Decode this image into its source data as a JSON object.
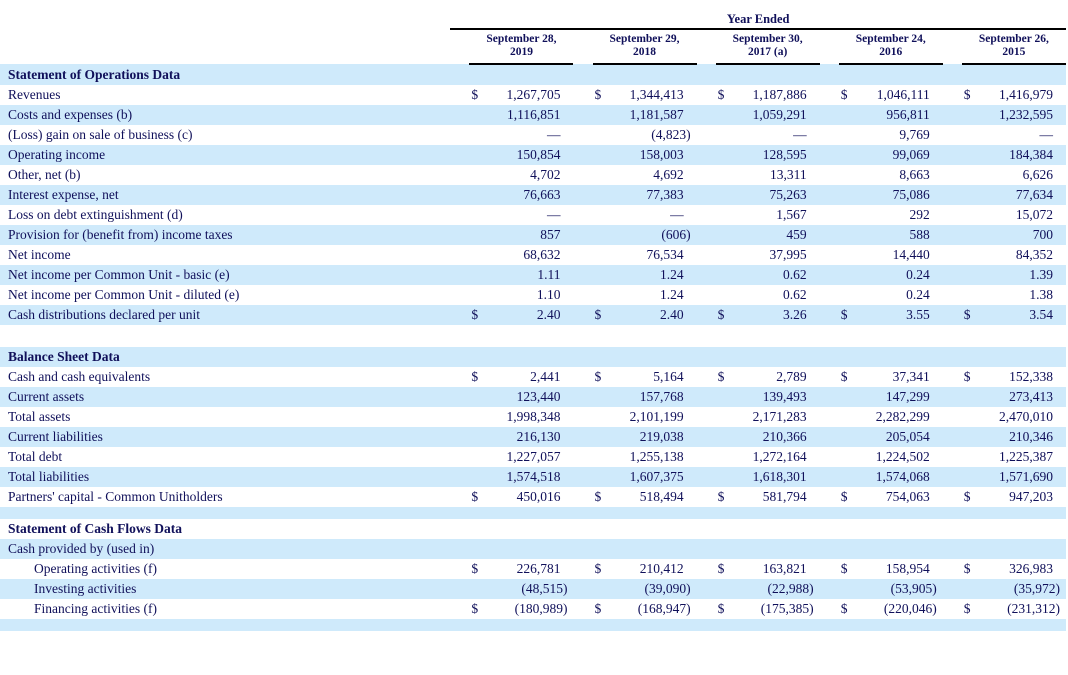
{
  "table": {
    "header": {
      "year_ended_label": "Year Ended",
      "columns": [
        {
          "line1": "September 28,",
          "line2": "2019"
        },
        {
          "line1": "September 29,",
          "line2": "2018"
        },
        {
          "line1": "September 30,",
          "line2": "2017 (a)"
        },
        {
          "line1": "September 24,",
          "line2": "2016"
        },
        {
          "line1": "September 26,",
          "line2": "2015"
        }
      ]
    },
    "currency_symbol": "$",
    "colors": {
      "row_shade": "#cfeafb",
      "text": "#10105a",
      "rule": "#000000"
    },
    "sections": [
      {
        "title": "Statement of Operations Data",
        "rows": [
          {
            "label": "Revenues",
            "dollar": true,
            "values": [
              "1,267,705",
              "1,344,413",
              "1,187,886",
              "1,046,111",
              "1,416,979"
            ]
          },
          {
            "label": "Costs and expenses (b)",
            "dollar": false,
            "values": [
              "1,116,851",
              "1,181,587",
              "1,059,291",
              "956,811",
              "1,232,595"
            ]
          },
          {
            "label": "(Loss) gain on sale of business (c)",
            "dollar": false,
            "values": [
              "—",
              "(4,823)",
              "—",
              "9,769",
              "—"
            ]
          },
          {
            "label": "Operating income",
            "dollar": false,
            "values": [
              "150,854",
              "158,003",
              "128,595",
              "99,069",
              "184,384"
            ]
          },
          {
            "label": "Other, net (b)",
            "dollar": false,
            "values": [
              "4,702",
              "4,692",
              "13,311",
              "8,663",
              "6,626"
            ]
          },
          {
            "label": "Interest expense, net",
            "dollar": false,
            "values": [
              "76,663",
              "77,383",
              "75,263",
              "75,086",
              "77,634"
            ]
          },
          {
            "label": "Loss on debt extinguishment (d)",
            "dollar": false,
            "values": [
              "—",
              "—",
              "1,567",
              "292",
              "15,072"
            ]
          },
          {
            "label": "Provision for (benefit from) income taxes",
            "dollar": false,
            "values": [
              "857",
              "(606)",
              "459",
              "588",
              "700"
            ]
          },
          {
            "label": "Net income",
            "dollar": false,
            "values": [
              "68,632",
              "76,534",
              "37,995",
              "14,440",
              "84,352"
            ]
          },
          {
            "label": "Net income per Common Unit - basic (e)",
            "dollar": false,
            "values": [
              "1.11",
              "1.24",
              "0.62",
              "0.24",
              "1.39"
            ]
          },
          {
            "label": "Net income per Common Unit - diluted (e)",
            "dollar": false,
            "values": [
              "1.10",
              "1.24",
              "0.62",
              "0.24",
              "1.38"
            ]
          },
          {
            "label": "Cash distributions declared per unit",
            "dollar": true,
            "values": [
              "2.40",
              "2.40",
              "3.26",
              "3.55",
              "3.54"
            ]
          }
        ]
      },
      {
        "title": "Balance Sheet Data",
        "rows": [
          {
            "label": "Cash and cash equivalents",
            "dollar": true,
            "values": [
              "2,441",
              "5,164",
              "2,789",
              "37,341",
              "152,338"
            ]
          },
          {
            "label": "Current assets",
            "dollar": false,
            "values": [
              "123,440",
              "157,768",
              "139,493",
              "147,299",
              "273,413"
            ]
          },
          {
            "label": "Total assets",
            "dollar": false,
            "values": [
              "1,998,348",
              "2,101,199",
              "2,171,283",
              "2,282,299",
              "2,470,010"
            ]
          },
          {
            "label": "Current liabilities",
            "dollar": false,
            "values": [
              "216,130",
              "219,038",
              "210,366",
              "205,054",
              "210,346"
            ]
          },
          {
            "label": "Total debt",
            "dollar": false,
            "values": [
              "1,227,057",
              "1,255,138",
              "1,272,164",
              "1,224,502",
              "1,225,387"
            ]
          },
          {
            "label": "Total liabilities",
            "dollar": false,
            "values": [
              "1,574,518",
              "1,607,375",
              "1,618,301",
              "1,574,068",
              "1,571,690"
            ]
          },
          {
            "label": "Partners' capital - Common Unitholders",
            "dollar": true,
            "values": [
              "450,016",
              "518,494",
              "581,794",
              "754,063",
              "947,203"
            ]
          }
        ]
      },
      {
        "title": "Statement of Cash Flows Data",
        "rows": [
          {
            "label": "Cash provided by (used in)",
            "dollar": false,
            "values": [
              "",
              "",
              "",
              "",
              ""
            ]
          },
          {
            "label": "Operating activities (f)",
            "indent": true,
            "dollar": true,
            "values": [
              "226,781",
              "210,412",
              "163,821",
              "158,954",
              "326,983"
            ]
          },
          {
            "label": "Investing activities",
            "indent": true,
            "dollar": false,
            "values": [
              "(48,515)",
              "(39,090)",
              "(22,988)",
              "(53,905)",
              "(35,972)"
            ]
          },
          {
            "label": "Financing activities (f)",
            "indent": true,
            "dollar": true,
            "values": [
              "(180,989)",
              "(168,947)",
              "(175,385)",
              "(220,046)",
              "(231,312)"
            ]
          }
        ]
      }
    ]
  }
}
